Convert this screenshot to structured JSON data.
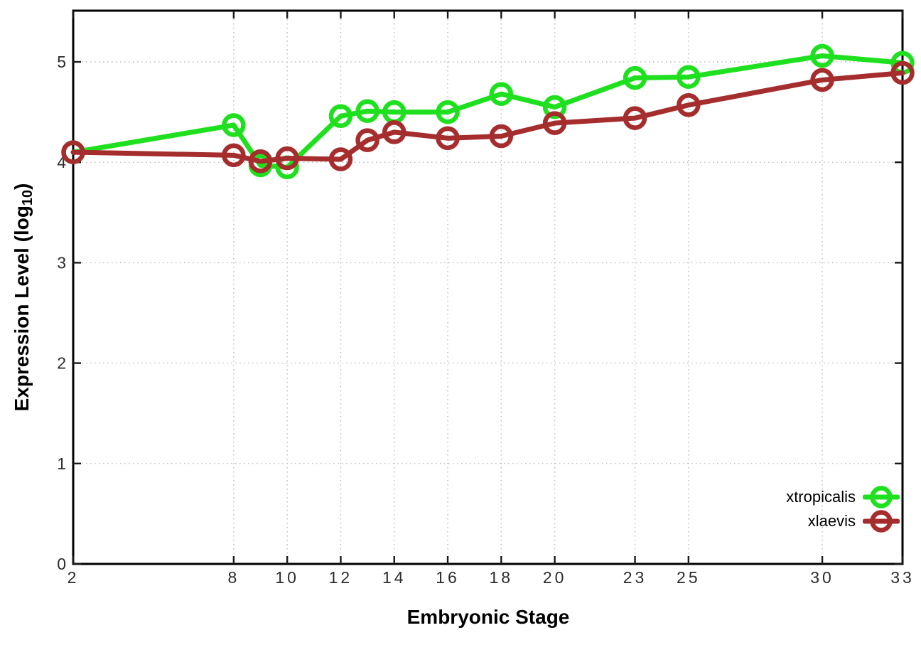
{
  "chart_data": {
    "type": "line",
    "title": "",
    "xlabel": "Embryonic Stage",
    "ylabel": {
      "pre": "Expression Level (log",
      "sub": "10",
      "post": ")"
    },
    "x": [
      2,
      8,
      9,
      10,
      12,
      13,
      14,
      16,
      18,
      20,
      23,
      25,
      30,
      33
    ],
    "series": [
      {
        "name": "xtropicalis",
        "color": "#1fe01f",
        "values": [
          4.1,
          4.37,
          3.97,
          3.95,
          4.46,
          4.51,
          4.5,
          4.5,
          4.68,
          4.55,
          4.84,
          4.85,
          5.06,
          4.99
        ]
      },
      {
        "name": "xlaevis",
        "color": "#a52d2d",
        "values": [
          4.1,
          4.07,
          4.01,
          4.04,
          4.03,
          4.22,
          4.3,
          4.24,
          4.26,
          4.39,
          4.44,
          4.57,
          4.82,
          4.89
        ]
      }
    ],
    "xlim": [
      2,
      33
    ],
    "ylim": [
      0,
      5.51
    ],
    "xticks": [
      2,
      8,
      10,
      12,
      14,
      16,
      18,
      20,
      23,
      25,
      30,
      33
    ],
    "yticks": [
      0,
      1,
      2,
      3,
      4,
      5
    ],
    "grid": true,
    "legend_position": "inside-bottom-right",
    "marker": "open-circle"
  },
  "style": {
    "background": "#ffffff",
    "axis_color": "#000000",
    "grid_color": "#b9b9b9",
    "tick_label_color": "#2c2c2c"
  }
}
